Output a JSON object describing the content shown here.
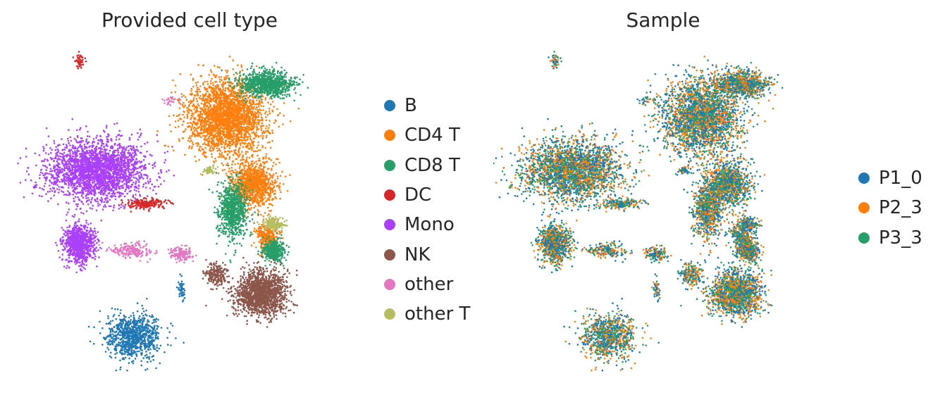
{
  "charts": [
    {
      "title": "Provided cell type",
      "legend": [
        "B",
        "CD4 T",
        "CD8 T",
        "DC",
        "Mono",
        "NK",
        "other",
        "other T"
      ],
      "colors": {
        "B": "#1f77b4",
        "CD4 T": "#ff7f0e",
        "CD8 T": "#279e68",
        "DC": "#d62728",
        "Mono": "#aa40fc",
        "NK": "#8c564b",
        "other": "#e377c2",
        "other T": "#b5bd61"
      }
    },
    {
      "title": "Sample",
      "legend": [
        "P1_0",
        "P2_3",
        "P3_3"
      ],
      "colors": {
        "P1_0": "#1f77b4",
        "P2_3": "#ff7f0e",
        "P3_3": "#279e68"
      }
    }
  ],
  "chart_data": [
    {
      "type": "scatter",
      "title": "Provided cell type",
      "xlabel": "",
      "ylabel": "",
      "axes_visible": false,
      "grid": false,
      "legend_position": "right",
      "categories": [
        "B",
        "CD4 T",
        "CD8 T",
        "DC",
        "Mono",
        "NK",
        "other",
        "other T"
      ],
      "clusters": [
        {
          "category": "Mono",
          "x": 0.22,
          "y": 0.62,
          "spread_x": 0.13,
          "spread_y": 0.08,
          "weight": 1.0
        },
        {
          "category": "Mono",
          "x": 0.17,
          "y": 0.4,
          "spread_x": 0.04,
          "spread_y": 0.05,
          "weight": 0.35
        },
        {
          "category": "DC",
          "x": 0.37,
          "y": 0.52,
          "spread_x": 0.05,
          "spread_y": 0.015,
          "weight": 0.08
        },
        {
          "category": "DC",
          "x": 0.17,
          "y": 0.95,
          "spread_x": 0.015,
          "spread_y": 0.02,
          "weight": 0.02
        },
        {
          "category": "other",
          "x": 0.32,
          "y": 0.38,
          "spread_x": 0.06,
          "spread_y": 0.02,
          "weight": 0.08
        },
        {
          "category": "other",
          "x": 0.47,
          "y": 0.37,
          "spread_x": 0.03,
          "spread_y": 0.02,
          "weight": 0.06
        },
        {
          "category": "other",
          "x": 0.44,
          "y": 0.83,
          "spread_x": 0.02,
          "spread_y": 0.01,
          "weight": 0.01
        },
        {
          "category": "B",
          "x": 0.33,
          "y": 0.12,
          "spread_x": 0.07,
          "spread_y": 0.06,
          "weight": 0.35
        },
        {
          "category": "B",
          "x": 0.47,
          "y": 0.26,
          "spread_x": 0.01,
          "spread_y": 0.03,
          "weight": 0.02
        },
        {
          "category": "CD4 T",
          "x": 0.6,
          "y": 0.78,
          "spread_x": 0.1,
          "spread_y": 0.1,
          "weight": 1.0
        },
        {
          "category": "CD4 T",
          "x": 0.68,
          "y": 0.58,
          "spread_x": 0.06,
          "spread_y": 0.06,
          "weight": 0.4
        },
        {
          "category": "CD4 T",
          "x": 0.72,
          "y": 0.42,
          "spread_x": 0.03,
          "spread_y": 0.04,
          "weight": 0.12
        },
        {
          "category": "CD8 T",
          "x": 0.72,
          "y": 0.88,
          "spread_x": 0.07,
          "spread_y": 0.035,
          "weight": 0.35
        },
        {
          "category": "CD8 T",
          "x": 0.62,
          "y": 0.5,
          "spread_x": 0.04,
          "spread_y": 0.08,
          "weight": 0.3
        },
        {
          "category": "CD8 T",
          "x": 0.74,
          "y": 0.38,
          "spread_x": 0.03,
          "spread_y": 0.03,
          "weight": 0.15
        },
        {
          "category": "other T",
          "x": 0.74,
          "y": 0.46,
          "spread_x": 0.03,
          "spread_y": 0.015,
          "weight": 0.06
        },
        {
          "category": "other T",
          "x": 0.55,
          "y": 0.62,
          "spread_x": 0.015,
          "spread_y": 0.01,
          "weight": 0.02
        },
        {
          "category": "NK",
          "x": 0.7,
          "y": 0.25,
          "spread_x": 0.07,
          "spread_y": 0.06,
          "weight": 0.6
        },
        {
          "category": "NK",
          "x": 0.57,
          "y": 0.31,
          "spread_x": 0.03,
          "spread_y": 0.03,
          "weight": 0.08
        }
      ]
    },
    {
      "type": "scatter",
      "title": "Sample",
      "xlabel": "",
      "ylabel": "",
      "axes_visible": false,
      "grid": false,
      "legend_position": "right",
      "categories": [
        "P1_0",
        "P2_3",
        "P3_3"
      ],
      "note_mixing": "cell positions identical to the left panel; colors are well mixed across samples",
      "category_weights": {
        "P1_0": 0.36,
        "P2_3": 0.33,
        "P3_3": 0.31
      }
    }
  ]
}
